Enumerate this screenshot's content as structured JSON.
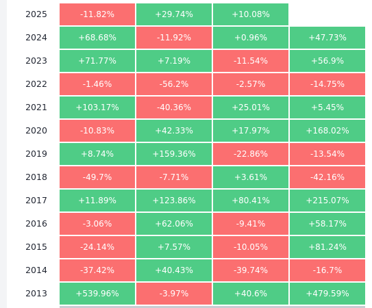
{
  "colors": {
    "positive": "#4fcc86",
    "negative": "#fb6f70",
    "year_text": "#1f2430",
    "cell_text": "#ffffff"
  },
  "rows": [
    {
      "year": "2025",
      "cells": [
        {
          "text": "-11.82%",
          "sign": "neg"
        },
        {
          "text": "+29.74%",
          "sign": "pos"
        },
        {
          "text": "+10.08%",
          "sign": "pos"
        },
        {
          "text": "",
          "sign": "empty"
        }
      ]
    },
    {
      "year": "2024",
      "cells": [
        {
          "text": "+68.68%",
          "sign": "pos"
        },
        {
          "text": "-11.92%",
          "sign": "neg"
        },
        {
          "text": "+0.96%",
          "sign": "pos"
        },
        {
          "text": "+47.73%",
          "sign": "pos"
        }
      ]
    },
    {
      "year": "2023",
      "cells": [
        {
          "text": "+71.77%",
          "sign": "pos"
        },
        {
          "text": "+7.19%",
          "sign": "pos"
        },
        {
          "text": "-11.54%",
          "sign": "neg"
        },
        {
          "text": "+56.9%",
          "sign": "pos"
        }
      ]
    },
    {
      "year": "2022",
      "cells": [
        {
          "text": "-1.46%",
          "sign": "neg"
        },
        {
          "text": "-56.2%",
          "sign": "neg"
        },
        {
          "text": "-2.57%",
          "sign": "neg"
        },
        {
          "text": "-14.75%",
          "sign": "neg"
        }
      ]
    },
    {
      "year": "2021",
      "cells": [
        {
          "text": "+103.17%",
          "sign": "pos"
        },
        {
          "text": "-40.36%",
          "sign": "neg"
        },
        {
          "text": "+25.01%",
          "sign": "pos"
        },
        {
          "text": "+5.45%",
          "sign": "pos"
        }
      ]
    },
    {
      "year": "2020",
      "cells": [
        {
          "text": "-10.83%",
          "sign": "neg"
        },
        {
          "text": "+42.33%",
          "sign": "pos"
        },
        {
          "text": "+17.97%",
          "sign": "pos"
        },
        {
          "text": "+168.02%",
          "sign": "pos"
        }
      ]
    },
    {
      "year": "2019",
      "cells": [
        {
          "text": "+8.74%",
          "sign": "pos"
        },
        {
          "text": "+159.36%",
          "sign": "pos"
        },
        {
          "text": "-22.86%",
          "sign": "neg"
        },
        {
          "text": "-13.54%",
          "sign": "neg"
        }
      ]
    },
    {
      "year": "2018",
      "cells": [
        {
          "text": "-49.7%",
          "sign": "neg"
        },
        {
          "text": "-7.71%",
          "sign": "neg"
        },
        {
          "text": "+3.61%",
          "sign": "pos"
        },
        {
          "text": "-42.16%",
          "sign": "neg"
        }
      ]
    },
    {
      "year": "2017",
      "cells": [
        {
          "text": "+11.89%",
          "sign": "pos"
        },
        {
          "text": "+123.86%",
          "sign": "pos"
        },
        {
          "text": "+80.41%",
          "sign": "pos"
        },
        {
          "text": "+215.07%",
          "sign": "pos"
        }
      ]
    },
    {
      "year": "2016",
      "cells": [
        {
          "text": "-3.06%",
          "sign": "neg"
        },
        {
          "text": "+62.06%",
          "sign": "pos"
        },
        {
          "text": "-9.41%",
          "sign": "neg"
        },
        {
          "text": "+58.17%",
          "sign": "pos"
        }
      ]
    },
    {
      "year": "2015",
      "cells": [
        {
          "text": "-24.14%",
          "sign": "neg"
        },
        {
          "text": "+7.57%",
          "sign": "pos"
        },
        {
          "text": "-10.05%",
          "sign": "neg"
        },
        {
          "text": "+81.24%",
          "sign": "pos"
        }
      ]
    },
    {
      "year": "2014",
      "cells": [
        {
          "text": "-37.42%",
          "sign": "neg"
        },
        {
          "text": "+40.43%",
          "sign": "pos"
        },
        {
          "text": "-39.74%",
          "sign": "neg"
        },
        {
          "text": "-16.7%",
          "sign": "neg"
        }
      ]
    },
    {
      "year": "2013",
      "cells": [
        {
          "text": "+539.96%",
          "sign": "pos"
        },
        {
          "text": "-3.97%",
          "sign": "neg"
        },
        {
          "text": "+40.6%",
          "sign": "pos"
        },
        {
          "text": "+479.59%",
          "sign": "pos"
        }
      ]
    }
  ]
}
